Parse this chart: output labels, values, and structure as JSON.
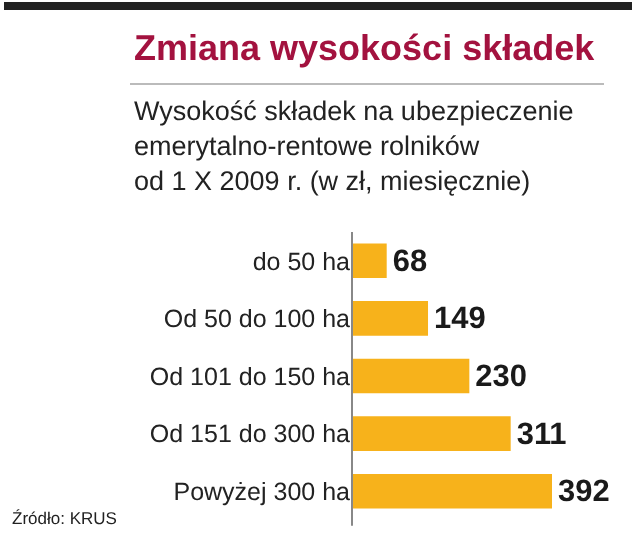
{
  "chart_data": {
    "type": "bar",
    "orientation": "horizontal",
    "title": "Zmiana wysokości składek",
    "subtitle": "Wysokość składek na ubezpieczenie\nemerytalno-rentowe rolników\nod 1 X 2009 r. (w zł, miesięcznie)",
    "categories": [
      "do 50 ha",
      "Od 50 do 100 ha",
      "Od 101 do 150 ha",
      "Od 151 do 300 ha",
      "Powyżej 300 ha"
    ],
    "values": [
      68,
      149,
      230,
      311,
      392
    ],
    "color": "#f7b21b",
    "data_labels": true,
    "tick_labels": "y",
    "legend": false,
    "annotations": [
      "Źródło: KRUS"
    ]
  }
}
